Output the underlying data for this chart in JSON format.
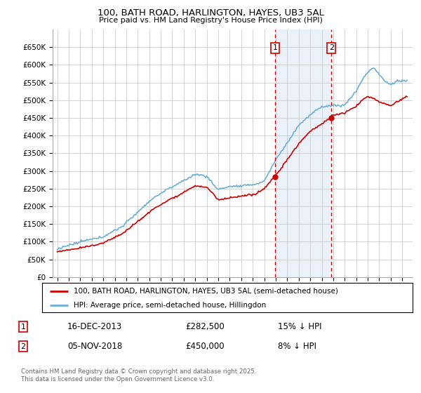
{
  "title": "100, BATH ROAD, HARLINGTON, HAYES, UB3 5AL",
  "subtitle": "Price paid vs. HM Land Registry's House Price Index (HPI)",
  "legend_line1": "100, BATH ROAD, HARLINGTON, HAYES, UB3 5AL (semi-detached house)",
  "legend_line2": "HPI: Average price, semi-detached house, Hillingdon",
  "footer": "Contains HM Land Registry data © Crown copyright and database right 2025.\nThis data is licensed under the Open Government Licence v3.0.",
  "annotation1_date": "16-DEC-2013",
  "annotation1_price": "£282,500",
  "annotation1_hpi": "15% ↓ HPI",
  "annotation2_date": "05-NOV-2018",
  "annotation2_price": "£450,000",
  "annotation2_hpi": "8% ↓ HPI",
  "sale1_year": 2013.96,
  "sale1_price": 282500,
  "sale2_year": 2018.84,
  "sale2_price": 450000,
  "ylim": [
    0,
    700000
  ],
  "yticks": [
    0,
    50000,
    100000,
    150000,
    200000,
    250000,
    300000,
    350000,
    400000,
    450000,
    500000,
    550000,
    600000,
    650000
  ],
  "ytick_labels": [
    "£0",
    "£50K",
    "£100K",
    "£150K",
    "£200K",
    "£250K",
    "£300K",
    "£350K",
    "£400K",
    "£450K",
    "£500K",
    "£550K",
    "£600K",
    "£650K"
  ],
  "hpi_color": "#6baed6",
  "price_color": "#cc0000",
  "grid_color": "#cccccc",
  "bg_color": "#ffffff",
  "annotation_box_color": "#cc0000",
  "shade_color": "#dce9f5"
}
